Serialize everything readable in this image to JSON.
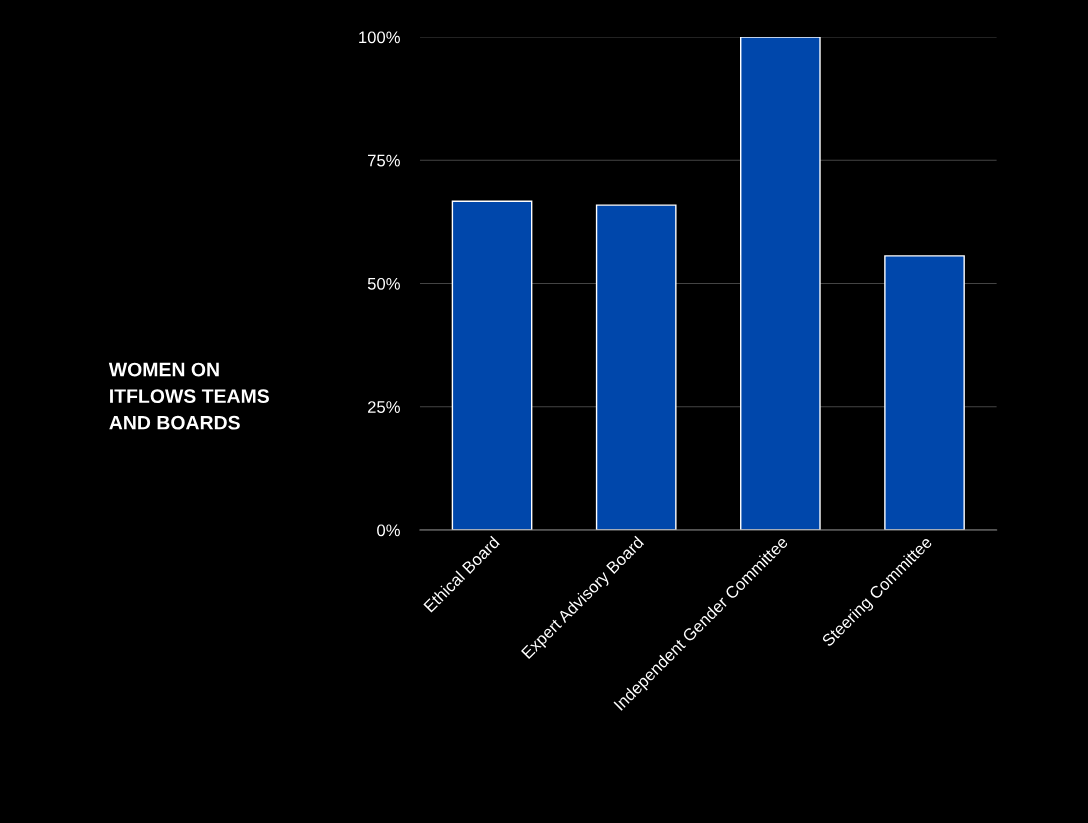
{
  "chart_data": {
    "type": "bar",
    "title": "WOMEN ON\nITFLOWS TEAMS\nAND BOARDS",
    "categories": [
      "Ethical Board",
      "Expert Advisory Board",
      "Independent Gender Committee",
      "Steering Committee"
    ],
    "values": [
      66.7,
      65.9,
      100,
      55.6
    ],
    "color": "#0047ab",
    "ylim": [
      0,
      100
    ],
    "yticks": [
      {
        "value": 0,
        "label": "0%"
      },
      {
        "value": 25,
        "label": "25%"
      },
      {
        "value": 50,
        "label": "50%"
      },
      {
        "value": 75,
        "label": "75%"
      },
      {
        "value": 100,
        "label": "100%"
      }
    ],
    "grid": "y",
    "legend": false
  }
}
